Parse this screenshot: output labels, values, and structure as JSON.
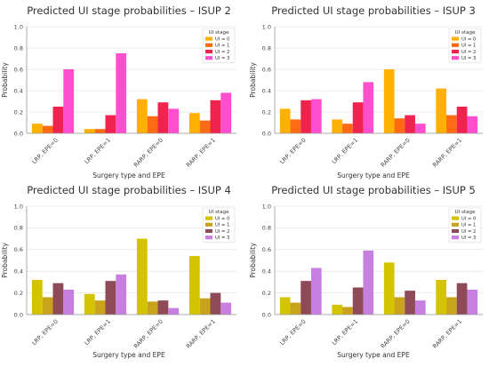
{
  "chart_data": [
    {
      "type": "bar",
      "title": "Predicted UI stage probabilities – ISUP 2",
      "xlabel": "Surgery type and EPE",
      "ylabel": "Probability",
      "ylim": [
        0,
        1.0
      ],
      "yticks": [
        "0.0",
        "0.2",
        "0.4",
        "0.6",
        "0.8",
        "1.0"
      ],
      "categories": [
        "LRP, EPE=0",
        "LRP, EPE=1",
        "RARP, EPE=0",
        "RARP, EPE=1"
      ],
      "legend": {
        "title": "UI stage",
        "position": "top-right"
      },
      "series": [
        {
          "name": "UI = 0",
          "color": "#FFB000",
          "values": [
            0.09,
            0.04,
            0.32,
            0.19
          ]
        },
        {
          "name": "UI = 1",
          "color": "#FF6A13",
          "values": [
            0.07,
            0.04,
            0.16,
            0.12
          ]
        },
        {
          "name": "UI = 2",
          "color": "#F0234E",
          "values": [
            0.25,
            0.17,
            0.29,
            0.31
          ]
        },
        {
          "name": "UI = 3",
          "color": "#FF4FCF",
          "values": [
            0.6,
            0.75,
            0.23,
            0.38
          ]
        }
      ]
    },
    {
      "type": "bar",
      "title": "Predicted UI stage probabilities – ISUP 3",
      "xlabel": "Surgery type and EPE",
      "ylabel": "Probability",
      "ylim": [
        0,
        1.0
      ],
      "yticks": [
        "0.0",
        "0.2",
        "0.4",
        "0.6",
        "0.8",
        "1.0"
      ],
      "categories": [
        "LRP, EPE=0",
        "LRP, EPE=1",
        "RARP, EPE=0",
        "RARP, EPE=1"
      ],
      "legend": {
        "title": "UI stage",
        "position": "top-right"
      },
      "series": [
        {
          "name": "UI = 0",
          "color": "#FFB000",
          "values": [
            0.23,
            0.13,
            0.6,
            0.42
          ]
        },
        {
          "name": "UI = 1",
          "color": "#FF6A13",
          "values": [
            0.13,
            0.09,
            0.14,
            0.17
          ]
        },
        {
          "name": "UI = 2",
          "color": "#F0234E",
          "values": [
            0.31,
            0.29,
            0.17,
            0.25
          ]
        },
        {
          "name": "UI = 3",
          "color": "#FF4FCF",
          "values": [
            0.32,
            0.48,
            0.09,
            0.16
          ]
        }
      ]
    },
    {
      "type": "bar",
      "title": "Predicted UI stage probabilities – ISUP 4",
      "xlabel": "Surgery type and EPE",
      "ylabel": "Probability",
      "ylim": [
        0,
        1.0
      ],
      "yticks": [
        "0.0",
        "0.2",
        "0.4",
        "0.6",
        "0.8",
        "1.0"
      ],
      "categories": [
        "LRP, EPE=0",
        "LRP, EPE=1",
        "RARP, EPE=0",
        "RARP, EPE=1"
      ],
      "legend": {
        "title": "UI stage",
        "position": "top-right"
      },
      "series": [
        {
          "name": "UI = 0",
          "color": "#D4C400",
          "values": [
            0.32,
            0.19,
            0.7,
            0.54
          ]
        },
        {
          "name": "UI = 1",
          "color": "#C9A31C",
          "values": [
            0.16,
            0.13,
            0.12,
            0.15
          ]
        },
        {
          "name": "UI = 2",
          "color": "#8E4A56",
          "values": [
            0.29,
            0.31,
            0.13,
            0.2
          ]
        },
        {
          "name": "UI = 3",
          "color": "#C77FE0",
          "values": [
            0.23,
            0.37,
            0.06,
            0.11
          ]
        }
      ]
    },
    {
      "type": "bar",
      "title": "Predicted UI stage probabilities – ISUP 5",
      "xlabel": "Surgery type and EPE",
      "ylabel": "Probability",
      "ylim": [
        0,
        1.0
      ],
      "yticks": [
        "0.0",
        "0.2",
        "0.4",
        "0.6",
        "0.8",
        "1.0"
      ],
      "categories": [
        "LRP, EPE=0",
        "LRP, EPE=1",
        "RARP, EPE=0",
        "RARP, EPE=1"
      ],
      "legend": {
        "title": "UI stage",
        "position": "top-right"
      },
      "series": [
        {
          "name": "UI = 0",
          "color": "#D4C400",
          "values": [
            0.16,
            0.09,
            0.48,
            0.32
          ]
        },
        {
          "name": "UI = 1",
          "color": "#C9A31C",
          "values": [
            0.11,
            0.07,
            0.16,
            0.16
          ]
        },
        {
          "name": "UI = 2",
          "color": "#8E4A56",
          "values": [
            0.31,
            0.25,
            0.22,
            0.29
          ]
        },
        {
          "name": "UI = 3",
          "color": "#C77FE0",
          "values": [
            0.43,
            0.59,
            0.13,
            0.23
          ]
        }
      ]
    }
  ]
}
